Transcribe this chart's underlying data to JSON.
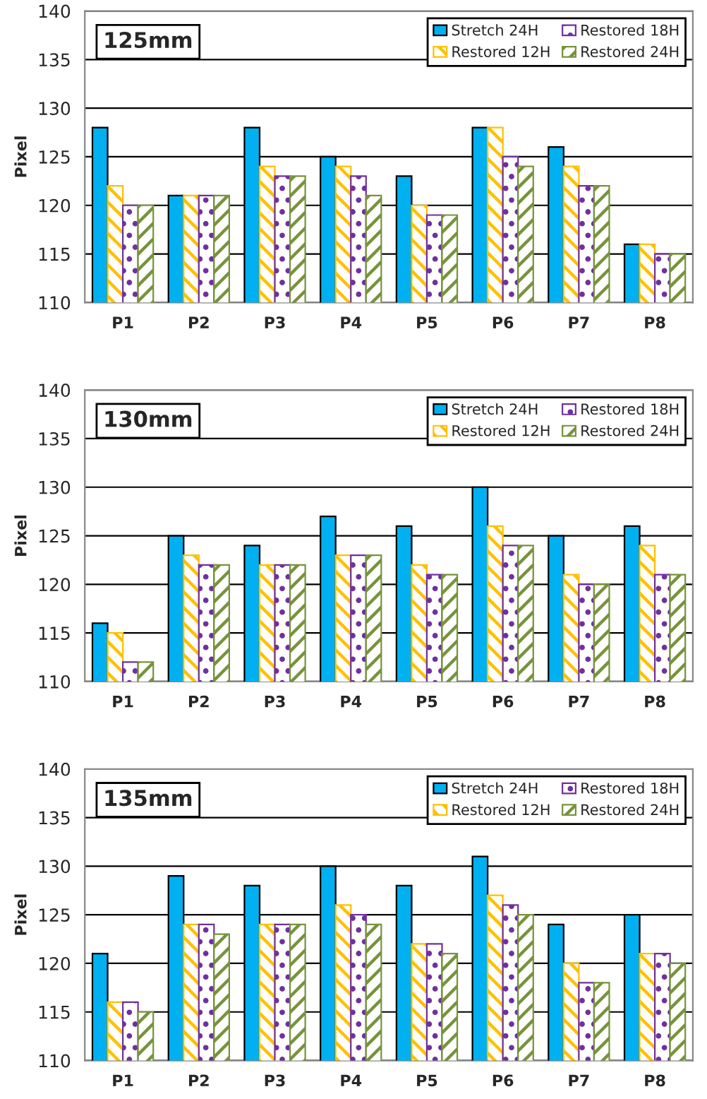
{
  "chart_data": [
    {
      "type": "bar",
      "title": "125mm",
      "ylabel": "Pixel",
      "categories": [
        "P1",
        "P2",
        "P3",
        "P4",
        "P5",
        "P6",
        "P7",
        "P8"
      ],
      "ylim": [
        110,
        140
      ],
      "yticks": [
        110,
        115,
        120,
        125,
        130,
        135,
        140
      ],
      "grid": "y",
      "legend": "top right",
      "series": [
        {
          "name": "Stretch 24H",
          "color": "#00b0f0",
          "values": [
            128,
            121,
            128,
            125,
            123,
            128,
            126,
            116
          ]
        },
        {
          "name": "Restored 12H",
          "color": "#ffc000",
          "values": [
            122,
            121,
            124,
            124,
            120,
            128,
            124,
            116
          ]
        },
        {
          "name": "Restored 18H",
          "color": "#7030a0",
          "values": [
            120,
            121,
            123,
            123,
            119,
            125,
            122,
            115
          ]
        },
        {
          "name": "Restored 24H",
          "color": "#77933c",
          "values": [
            120,
            121,
            123,
            121,
            119,
            124,
            122,
            115
          ]
        }
      ]
    },
    {
      "type": "bar",
      "title": "130mm",
      "ylabel": "Pixel",
      "categories": [
        "P1",
        "P2",
        "P3",
        "P4",
        "P5",
        "P6",
        "P7",
        "P8"
      ],
      "ylim": [
        110,
        140
      ],
      "yticks": [
        110,
        115,
        120,
        125,
        130,
        135,
        140
      ],
      "grid": "y",
      "legend": "top right",
      "series": [
        {
          "name": "Stretch 24H",
          "color": "#00b0f0",
          "values": [
            116,
            125,
            124,
            127,
            126,
            130,
            125,
            126
          ]
        },
        {
          "name": "Restored 12H",
          "color": "#ffc000",
          "values": [
            115,
            123,
            122,
            123,
            122,
            126,
            121,
            124
          ]
        },
        {
          "name": "Restored 18H",
          "color": "#7030a0",
          "values": [
            112,
            122,
            122,
            123,
            121,
            124,
            120,
            121
          ]
        },
        {
          "name": "Restored 24H",
          "color": "#77933c",
          "values": [
            112,
            122,
            122,
            123,
            121,
            124,
            120,
            121
          ]
        }
      ]
    },
    {
      "type": "bar",
      "title": "135mm",
      "ylabel": "Pixel",
      "categories": [
        "P1",
        "P2",
        "P3",
        "P4",
        "P5",
        "P6",
        "P7",
        "P8"
      ],
      "ylim": [
        110,
        140
      ],
      "yticks": [
        110,
        115,
        120,
        125,
        130,
        135,
        140
      ],
      "grid": "y",
      "legend": "top right",
      "series": [
        {
          "name": "Stretch 24H",
          "color": "#00b0f0",
          "values": [
            121,
            129,
            128,
            130,
            128,
            131,
            124,
            125
          ]
        },
        {
          "name": "Restored 12H",
          "color": "#ffc000",
          "values": [
            116,
            124,
            124,
            126,
            122,
            127,
            120,
            121
          ]
        },
        {
          "name": "Restored 18H",
          "color": "#7030a0",
          "values": [
            116,
            124,
            124,
            125,
            122,
            126,
            118,
            121
          ]
        },
        {
          "name": "Restored 24H",
          "color": "#77933c",
          "values": [
            115,
            123,
            124,
            124,
            121,
            125,
            118,
            120
          ]
        }
      ]
    }
  ]
}
